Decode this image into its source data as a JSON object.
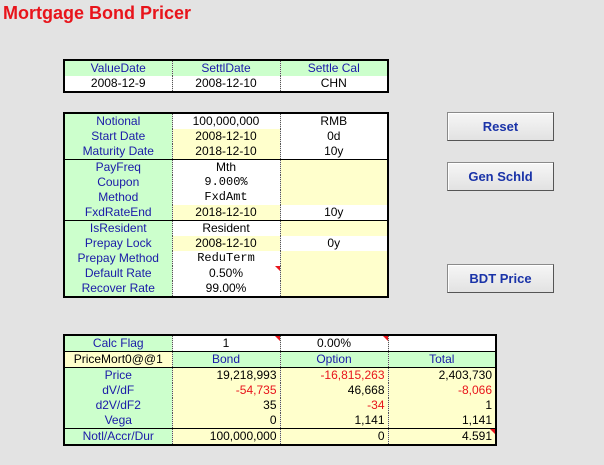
{
  "title": "Mortgage Bond Pricer",
  "table1": {
    "headers": [
      "ValueDate",
      "SettlDate",
      "Settle Cal"
    ],
    "values": [
      "2008-12-9",
      "2008-12-10",
      "CHN"
    ]
  },
  "table2": {
    "rows": [
      [
        "Notional",
        "100,000,000",
        "RMB"
      ],
      [
        "Start Date",
        "2008-12-10",
        "0d"
      ],
      [
        "Maturity Date",
        "2018-12-10",
        "10y"
      ],
      [
        "PayFreq",
        "Mth",
        ""
      ],
      [
        "Coupon",
        "9.000%",
        ""
      ],
      [
        "Method",
        "FxdAmt",
        ""
      ],
      [
        "FxdRateEnd",
        "2018-12-10",
        "10y"
      ],
      [
        "IsResident",
        "Resident",
        ""
      ],
      [
        "Prepay Lock",
        "2008-12-10",
        "0y"
      ],
      [
        "Prepay Method",
        "ReduTerm",
        ""
      ],
      [
        "Default Rate",
        "0.50%",
        ""
      ],
      [
        "Recover Rate",
        "99.00%",
        ""
      ]
    ]
  },
  "table3": {
    "calc": [
      "Calc Flag",
      "1",
      "0.00%",
      ""
    ],
    "headers": [
      "PriceMort0@@1",
      "Bond",
      "Option",
      "Total"
    ],
    "rows": [
      [
        "Price",
        "19,218,993",
        "-16,815,263",
        "2,403,730"
      ],
      [
        "dV/dF",
        "-54,735",
        "46,668",
        "-8,066"
      ],
      [
        "d2V/dF2",
        "35",
        "-34",
        "1"
      ],
      [
        "Vega",
        "0",
        "1,141",
        "1,141"
      ],
      [
        "Notl/Accr/Dur",
        "100,000,000",
        "0",
        "4.591"
      ]
    ]
  },
  "buttons": {
    "reset": "Reset",
    "gen_schld": "Gen Schld",
    "bdt_price": "BDT Price"
  },
  "colors": {
    "title": "#e8141b",
    "label_green": "#ccffcc",
    "input_yellow": "#ffffcc",
    "label_text": "#1a1aa8",
    "negative": "#e8141b",
    "button_text": "#1a33a8"
  }
}
